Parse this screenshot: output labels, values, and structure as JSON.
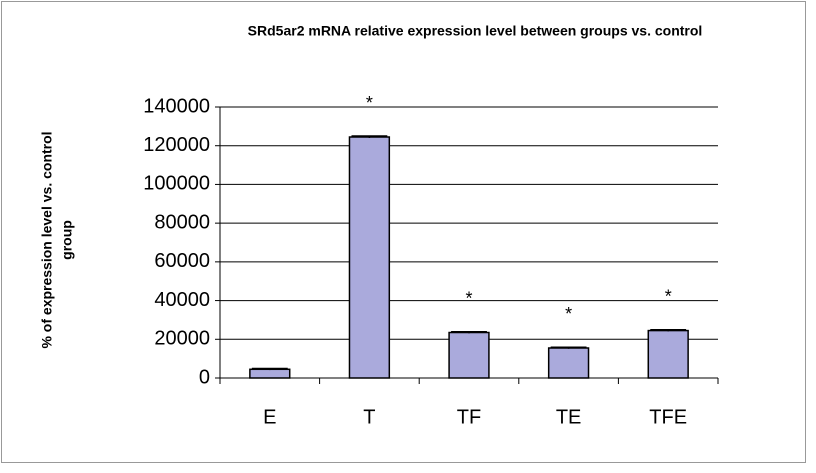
{
  "chart_data": {
    "type": "bar",
    "title": "SRd5ar2 mRNA relative expression level between groups vs. control",
    "ylabel": [
      "% of expression level vs. control",
      "group"
    ],
    "categories": [
      "E",
      "T",
      "TF",
      "TE",
      "TFE"
    ],
    "values": [
      4500,
      124500,
      23500,
      15500,
      24500
    ],
    "errors": [
      400,
      500,
      400,
      400,
      400
    ],
    "significance": [
      null,
      "*",
      "*",
      "*",
      "*"
    ],
    "color": "#aaaadc",
    "ylim": [
      0,
      140000
    ],
    "yticks": [
      0,
      20000,
      40000,
      60000,
      80000,
      100000,
      120000,
      140000
    ],
    "grid": true
  }
}
